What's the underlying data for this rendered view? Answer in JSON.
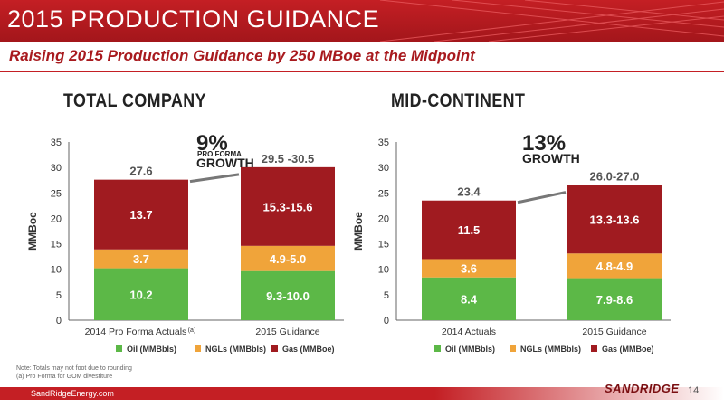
{
  "header": {
    "title": "2015 PRODUCTION GUIDANCE"
  },
  "subtitle": "Raising 2015 Production Guidance by 250 MBoe at the Midpoint",
  "colors": {
    "oil": "#5cb847",
    "ngl": "#f0a43a",
    "gas": "#a01b20",
    "accent": "#c41f24"
  },
  "chart_data": [
    {
      "type": "bar",
      "stacked": true,
      "title": "TOTAL COMPANY",
      "ylabel": "MMBoe",
      "ylim": [
        0,
        35
      ],
      "yticks": [
        "0",
        "5",
        "10",
        "15",
        "20",
        "25",
        "30",
        "35"
      ],
      "categories": [
        "2014 Pro Forma Actuals",
        "2015 Guidance"
      ],
      "category_note": "(a)",
      "series": [
        {
          "name": "Oil (MMBbls)",
          "values": [
            10.2,
            9.65
          ],
          "labels": [
            "10.2",
            "9.3-10.0"
          ]
        },
        {
          "name": "NGLs (MMBbls)",
          "values": [
            3.7,
            4.95
          ],
          "labels": [
            "3.7",
            "4.9-5.0"
          ]
        },
        {
          "name": "Gas (MMBoe)",
          "values": [
            13.7,
            15.45
          ],
          "labels": [
            "13.7",
            "15.3-15.6"
          ]
        }
      ],
      "totals": [
        "27.6",
        "29.5 -30.5"
      ],
      "growth": {
        "pct": "9%",
        "line1": "PRO FORMA",
        "line2": "GROWTH"
      },
      "legend": "bottom"
    },
    {
      "type": "bar",
      "stacked": true,
      "title": "MID-CONTINENT",
      "ylabel": "MMBoe",
      "ylim": [
        0,
        35
      ],
      "yticks": [
        "0",
        "5",
        "10",
        "15",
        "20",
        "25",
        "30",
        "35"
      ],
      "categories": [
        "2014 Actuals",
        "2015 Guidance"
      ],
      "category_note": "",
      "series": [
        {
          "name": "Oil (MMBbls)",
          "values": [
            8.4,
            8.25
          ],
          "labels": [
            "8.4",
            "7.9-8.6"
          ]
        },
        {
          "name": "NGLs (MMBbls)",
          "values": [
            3.6,
            4.85
          ],
          "labels": [
            "3.6",
            "4.8-4.9"
          ]
        },
        {
          "name": "Gas (MMBoe)",
          "values": [
            11.5,
            13.45
          ],
          "labels": [
            "11.5",
            "13.3-13.6"
          ]
        }
      ],
      "totals": [
        "23.4",
        "26.0-27.0"
      ],
      "growth": {
        "pct": "13%",
        "line1": "",
        "line2": "GROWTH"
      },
      "legend": "bottom"
    }
  ],
  "notes": [
    "Note: Totals may not foot due to rounding",
    "(a) Pro Forma for GOM divestiture"
  ],
  "footer": {
    "website": "SandRidgeEnergy.com",
    "logo": "SANDRIDGE",
    "page": "14"
  }
}
